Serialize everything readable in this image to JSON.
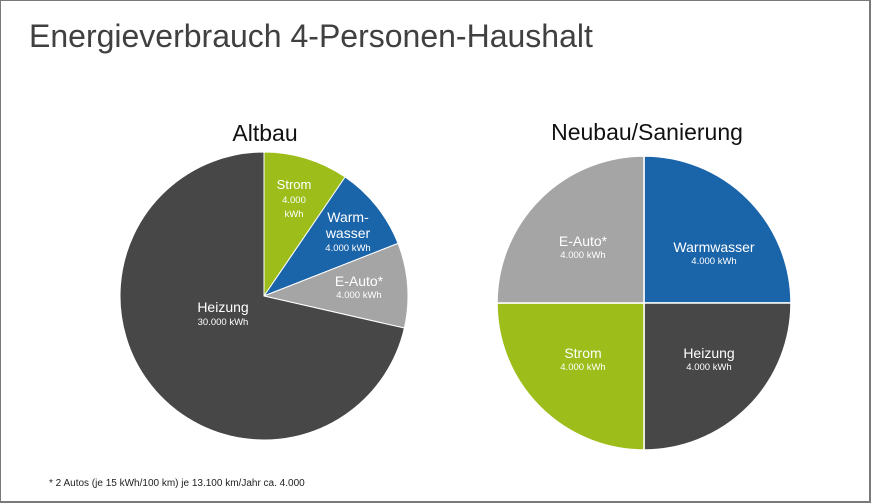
{
  "title": "Energieverbrauch 4-Personen-Haushalt",
  "footnote": "* 2 Autos (je 15 kWh/100 km) je 13.100 km/Jahr ca. 4.000",
  "colors": {
    "strom": "#9dbd1b",
    "warmwasser": "#1a64aa",
    "e_auto": "#a5a5a6",
    "heizung": "#474748"
  },
  "charts": {
    "altbau": {
      "title": "Altbau",
      "slices": [
        {
          "name": "Strom",
          "value_label": "4.000",
          "unit_label": "kWh"
        },
        {
          "name_line1": "Warm-",
          "name_line2": "wasser",
          "value_label": "4.000 kWh"
        },
        {
          "name": "E-Auto*",
          "value_label": "4.000 kWh"
        },
        {
          "name": "Heizung",
          "value_label": "30.000 kWh"
        }
      ]
    },
    "neubau": {
      "title": "Neubau/Sanierung",
      "slices": [
        {
          "name": "Warmwasser",
          "value_label": "4.000 kWh"
        },
        {
          "name": "Heizung",
          "value_label": "4.000 kWh"
        },
        {
          "name": "Strom",
          "value_label": "4.000 kWh"
        },
        {
          "name": "E-Auto*",
          "value_label": "4.000 kWh"
        }
      ]
    }
  },
  "chart_data": [
    {
      "type": "pie",
      "title": "Altbau",
      "categories": [
        "Strom",
        "Warmwasser",
        "E-Auto*",
        "Heizung"
      ],
      "values": [
        4000,
        4000,
        4000,
        30000
      ],
      "unit": "kWh",
      "colors": [
        "#9dbd1b",
        "#1a64aa",
        "#a5a5a6",
        "#474748"
      ],
      "start_angle": "12 o'clock, clockwise"
    },
    {
      "type": "pie",
      "title": "Neubau/Sanierung",
      "categories": [
        "Warmwasser",
        "Heizung",
        "Strom",
        "E-Auto*"
      ],
      "values": [
        4000,
        4000,
        4000,
        4000
      ],
      "unit": "kWh",
      "colors": [
        "#1a64aa",
        "#474748",
        "#9dbd1b",
        "#a5a5a6"
      ],
      "start_angle": "12 o'clock, clockwise"
    }
  ]
}
